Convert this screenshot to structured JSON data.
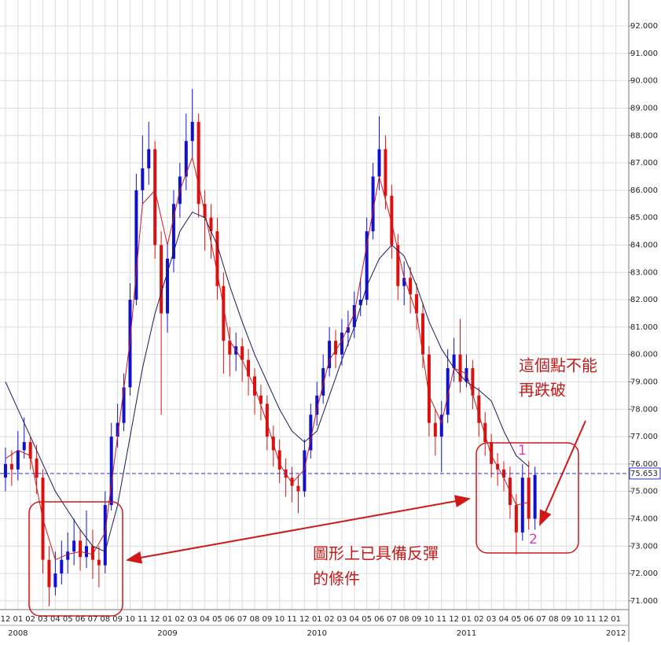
{
  "chart_data": {
    "type": "candlestick",
    "xlim": [
      -0.44,
      50.03
    ],
    "ylim": [
      70.68,
      92.95
    ],
    "xticks": [
      {
        "value": 0,
        "label": "12"
      },
      {
        "value": 1,
        "label": "01"
      },
      {
        "value": 2,
        "label": "02"
      },
      {
        "value": 3,
        "label": "03"
      },
      {
        "value": 4,
        "label": "04"
      },
      {
        "value": 5,
        "label": "05"
      },
      {
        "value": 6,
        "label": "06"
      },
      {
        "value": 7,
        "label": "07"
      },
      {
        "value": 8,
        "label": "08"
      },
      {
        "value": 9,
        "label": "09"
      },
      {
        "value": 10,
        "label": "10"
      },
      {
        "value": 11,
        "label": "11"
      },
      {
        "value": 12,
        "label": "12"
      },
      {
        "value": 13,
        "label": "01"
      },
      {
        "value": 14,
        "label": "02"
      },
      {
        "value": 15,
        "label": "03"
      },
      {
        "value": 16,
        "label": "04"
      },
      {
        "value": 17,
        "label": "05"
      },
      {
        "value": 18,
        "label": "06"
      },
      {
        "value": 19,
        "label": "07"
      },
      {
        "value": 20,
        "label": "08"
      },
      {
        "value": 21,
        "label": "09"
      },
      {
        "value": 22,
        "label": "10"
      },
      {
        "value": 23,
        "label": "11"
      },
      {
        "value": 24,
        "label": "12"
      },
      {
        "value": 25,
        "label": "01"
      },
      {
        "value": 26,
        "label": "02"
      },
      {
        "value": 27,
        "label": "03"
      },
      {
        "value": 28,
        "label": "04"
      },
      {
        "value": 29,
        "label": "05"
      },
      {
        "value": 30,
        "label": "06"
      },
      {
        "value": 31,
        "label": "07"
      },
      {
        "value": 32,
        "label": "08"
      },
      {
        "value": 33,
        "label": "09"
      },
      {
        "value": 34,
        "label": "10"
      },
      {
        "value": 35,
        "label": "11"
      },
      {
        "value": 36,
        "label": "12"
      },
      {
        "value": 37,
        "label": "01"
      },
      {
        "value": 38,
        "label": "02"
      },
      {
        "value": 39,
        "label": "03"
      },
      {
        "value": 40,
        "label": "04"
      },
      {
        "value": 41,
        "label": "05"
      },
      {
        "value": 42,
        "label": "06"
      },
      {
        "value": 43,
        "label": "07"
      },
      {
        "value": 44,
        "label": "08"
      },
      {
        "value": 45,
        "label": "09"
      },
      {
        "value": 46,
        "label": "10"
      },
      {
        "value": 47,
        "label": "11"
      },
      {
        "value": 48,
        "label": "12"
      },
      {
        "value": 49,
        "label": "01"
      }
    ],
    "year_ticks": [
      {
        "value": 1,
        "label": "2008"
      },
      {
        "value": 13,
        "label": "2009"
      },
      {
        "value": 25,
        "label": "2010"
      },
      {
        "value": 37,
        "label": "2011"
      },
      {
        "value": 49,
        "label": "2012"
      }
    ],
    "yticks": [
      {
        "value": 71,
        "label": "71.000"
      },
      {
        "value": 72,
        "label": "72.000"
      },
      {
        "value": 73,
        "label": "73.000"
      },
      {
        "value": 74,
        "label": "74.000"
      },
      {
        "value": 75,
        "label": "75.000"
      },
      {
        "value": 76,
        "label": "76.000"
      },
      {
        "value": 77,
        "label": "77.000"
      },
      {
        "value": 78,
        "label": "78.000"
      },
      {
        "value": 79,
        "label": "79.000"
      },
      {
        "value": 80,
        "label": "80.000"
      },
      {
        "value": 81,
        "label": "81.000"
      },
      {
        "value": 82,
        "label": "82.000"
      },
      {
        "value": 83,
        "label": "83.000"
      },
      {
        "value": 84,
        "label": "84.000"
      },
      {
        "value": 85,
        "label": "85.000"
      },
      {
        "value": 86,
        "label": "86.000"
      },
      {
        "value": 87,
        "label": "87.000"
      },
      {
        "value": 88,
        "label": "88.000"
      },
      {
        "value": 89,
        "label": "89.000"
      },
      {
        "value": 90,
        "label": "90.000"
      },
      {
        "value": 91,
        "label": "91.000"
      },
      {
        "value": 92,
        "label": "92.000"
      }
    ],
    "grid": true,
    "up_color": "#1010d0",
    "down_color": "#dd1010",
    "ohlc": {
      "x": [
        0,
        0.5,
        1,
        1.5,
        2,
        2.5,
        3,
        3.5,
        4,
        4.5,
        5,
        5.5,
        6,
        6.5,
        7,
        7.5,
        8,
        8.5,
        9,
        9.5,
        10,
        10.5,
        11,
        11.5,
        12,
        12.5,
        13,
        13.5,
        14,
        14.5,
        15,
        15.5,
        16,
        16.5,
        17,
        17.5,
        18,
        18.5,
        19,
        19.5,
        20,
        20.5,
        21,
        21.5,
        22,
        22.5,
        23,
        23.5,
        24,
        24.5,
        25,
        25.5,
        26,
        26.5,
        27,
        27.5,
        28,
        28.5,
        29,
        29.5,
        30,
        30.5,
        31,
        31.5,
        32,
        32.5,
        33,
        33.5,
        34,
        34.5,
        35,
        35.5,
        36,
        36.5,
        37,
        37.5,
        38,
        38.5,
        39,
        39.5,
        40,
        40.5,
        41,
        41.5,
        42,
        42.5
      ],
      "open": [
        75.5,
        76.0,
        75.8,
        76.5,
        76.8,
        76.2,
        75.5,
        72.5,
        71.5,
        72.0,
        72.5,
        72.8,
        73.2,
        72.6,
        73.0,
        72.5,
        72.3,
        74.5,
        77.0,
        77.5,
        78.8,
        82.0,
        86.0,
        86.8,
        87.5,
        84.0,
        81.5,
        83.5,
        85.5,
        86.5,
        87.8,
        88.5,
        85.5,
        85.0,
        84.5,
        82.5,
        80.5,
        80.0,
        80.3,
        79.8,
        79.2,
        78.5,
        78.2,
        77.0,
        76.5,
        75.8,
        75.5,
        75.2,
        75.0,
        76.5,
        77.8,
        78.5,
        79.5,
        80.5,
        80.0,
        80.8,
        81.0,
        81.8,
        82.0,
        84.5,
        86.5,
        87.5,
        85.8,
        84.0,
        82.5,
        82.8,
        82.2,
        81.5,
        80.0,
        77.5,
        77.0,
        77.8,
        79.5,
        80.0,
        79.0,
        79.5,
        78.5,
        77.5,
        76.8,
        76.0,
        75.8,
        75.5,
        74.5,
        73.5,
        75.5,
        74.0
      ],
      "high": [
        76.6,
        76.5,
        77.2,
        77.7,
        77.0,
        76.7,
        75.8,
        73.0,
        72.8,
        73.2,
        73.5,
        74.0,
        73.6,
        74.3,
        73.6,
        73.0,
        75.0,
        77.5,
        78.2,
        79.3,
        82.6,
        86.6,
        88.0,
        88.5,
        87.8,
        84.5,
        84.0,
        86.0,
        87.0,
        88.8,
        89.7,
        88.8,
        86.0,
        85.5,
        85.0,
        83.0,
        81.0,
        80.8,
        80.6,
        80.2,
        79.5,
        78.9,
        78.5,
        77.4,
        76.9,
        76.2,
        75.9,
        75.6,
        76.9,
        78.2,
        79.0,
        80.0,
        81.0,
        80.9,
        81.3,
        81.6,
        82.3,
        82.8,
        85.0,
        87.0,
        88.7,
        88.0,
        86.2,
        84.4,
        83.4,
        83.2,
        82.6,
        81.9,
        80.3,
        78.0,
        78.3,
        80.2,
        80.6,
        81.3,
        80.0,
        79.8,
        78.8,
        77.9,
        77.1,
        76.4,
        76.1,
        75.9,
        74.9,
        76.0,
        76.1,
        75.9
      ],
      "low": [
        75.0,
        75.2,
        75.4,
        76.2,
        75.8,
        74.9,
        72.0,
        70.8,
        71.2,
        71.6,
        72.0,
        72.3,
        72.1,
        72.2,
        71.8,
        71.5,
        72.0,
        74.3,
        76.6,
        77.2,
        78.5,
        81.8,
        85.5,
        86.2,
        83.5,
        77.8,
        80.8,
        83.0,
        85.0,
        86.0,
        87.2,
        85.0,
        83.8,
        83.5,
        82.0,
        79.3,
        79.2,
        79.4,
        79.0,
        78.5,
        77.8,
        77.6,
        76.5,
        75.9,
        75.3,
        74.8,
        74.6,
        74.2,
        74.8,
        76.2,
        77.4,
        78.2,
        79.2,
        79.5,
        79.6,
        80.3,
        80.6,
        81.4,
        81.8,
        84.2,
        86.0,
        85.3,
        83.5,
        82.0,
        81.8,
        81.5,
        80.9,
        79.5,
        77.0,
        76.3,
        75.7,
        77.5,
        79.0,
        78.6,
        78.8,
        78.0,
        77.0,
        76.3,
        75.5,
        75.2,
        75.0,
        74.0,
        72.7,
        73.2,
        73.6,
        73.6
      ],
      "close": [
        76.0,
        75.8,
        76.5,
        76.8,
        76.2,
        75.5,
        72.5,
        71.5,
        72.0,
        72.5,
        72.8,
        73.2,
        72.6,
        73.0,
        72.5,
        72.3,
        74.5,
        77.0,
        77.5,
        78.8,
        82.0,
        86.0,
        86.8,
        87.5,
        84.0,
        81.5,
        83.5,
        85.5,
        86.5,
        87.8,
        88.5,
        85.5,
        85.0,
        84.5,
        82.5,
        80.5,
        80.0,
        80.3,
        79.8,
        79.2,
        78.5,
        78.2,
        77.0,
        76.5,
        75.8,
        75.5,
        75.2,
        75.0,
        76.5,
        77.8,
        78.5,
        79.5,
        80.5,
        80.0,
        80.8,
        81.0,
        81.8,
        82.0,
        84.5,
        86.5,
        87.5,
        85.8,
        84.0,
        82.5,
        82.8,
        82.2,
        81.5,
        80.0,
        77.5,
        77.0,
        77.8,
        79.5,
        80.0,
        79.0,
        79.5,
        78.5,
        77.5,
        76.8,
        76.0,
        75.8,
        75.5,
        74.5,
        73.5,
        75.5,
        74.0,
        75.6
      ]
    },
    "lines": [
      {
        "color": "#cc1a1a",
        "x": [
          0,
          1,
          2,
          3,
          4,
          5,
          6,
          7,
          8,
          9,
          10,
          11,
          12,
          13,
          14,
          15,
          16,
          17,
          18,
          19,
          20,
          21,
          22,
          23,
          24,
          25,
          26,
          27,
          28,
          29,
          30,
          31,
          32,
          33,
          34,
          35,
          36,
          37,
          38,
          39,
          40,
          41,
          42
        ],
        "values": [
          76.2,
          76.5,
          76.3,
          74.0,
          72.5,
          72.7,
          72.8,
          72.7,
          73.5,
          77.0,
          80.5,
          85.5,
          86.0,
          84.0,
          86.0,
          87.2,
          85.2,
          83.0,
          80.5,
          79.8,
          78.8,
          77.5,
          76.0,
          75.3,
          75.8,
          78.0,
          79.8,
          80.5,
          81.5,
          84.0,
          86.5,
          84.8,
          82.8,
          81.5,
          78.5,
          77.5,
          79.5,
          79.3,
          77.8,
          76.3,
          75.5,
          74.5,
          74.6
        ]
      },
      {
        "color": "#1a1a5a",
        "x": [
          0,
          1,
          2,
          3,
          4,
          5,
          6,
          7,
          8,
          9,
          10,
          11,
          12,
          13,
          14,
          15,
          16,
          17,
          18,
          19,
          20,
          21,
          22,
          23,
          24,
          25,
          26,
          27,
          28,
          29,
          30,
          31,
          32,
          33,
          34,
          35,
          36,
          37,
          38,
          39,
          40,
          41,
          42
        ],
        "values": [
          79.0,
          78.0,
          77.0,
          76.0,
          75.0,
          74.3,
          73.6,
          73.0,
          72.8,
          74.5,
          77.0,
          79.5,
          81.5,
          83.0,
          84.5,
          85.2,
          85.0,
          84.0,
          82.5,
          81.2,
          80.0,
          79.0,
          78.0,
          77.2,
          76.8,
          77.2,
          78.5,
          79.8,
          81.0,
          82.5,
          83.5,
          84.0,
          83.6,
          82.5,
          81.2,
          80.2,
          79.5,
          79.0,
          78.7,
          78.3,
          77.2,
          76.3,
          75.9
        ]
      }
    ],
    "last_price": 75.653,
    "annotations": {
      "note1_line1": "這個點不能",
      "note1_line2": "再跌破",
      "note2_line1": "圖形上已具備反彈",
      "note2_line2": "的條件",
      "point1": "1",
      "point2": "2"
    }
  }
}
